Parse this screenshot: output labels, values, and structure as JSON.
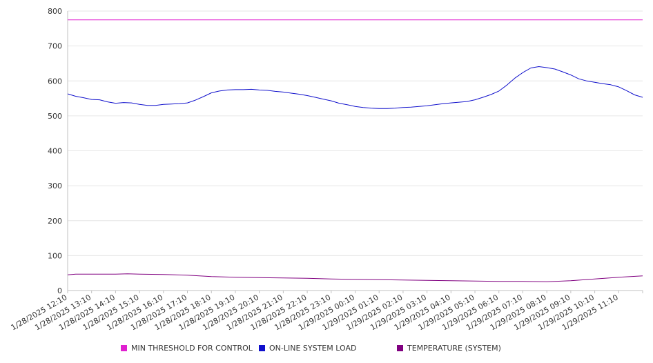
{
  "chart_data": {
    "type": "line",
    "title": "",
    "xlabel": "",
    "ylabel": "",
    "ylim": [
      0,
      800
    ],
    "yticks": [
      0,
      100,
      200,
      300,
      400,
      500,
      600,
      700,
      800
    ],
    "grid": true,
    "legend_position": "bottom",
    "x_tick_labels": [
      "1/28/2025 12:10",
      "1/28/2025 13:10",
      "1/28/2025 14:10",
      "1/28/2025 15:10",
      "1/28/2025 16:10",
      "1/28/2025 17:10",
      "1/28/2025 18:10",
      "1/28/2025 19:10",
      "1/28/2025 20:10",
      "1/28/2025 21:10",
      "1/28/2025 22:10",
      "1/28/2025 23:10",
      "1/29/2025 00:10",
      "1/29/2025 01:10",
      "1/29/2025 02:10",
      "1/29/2025 03:10",
      "1/29/2025 04:10",
      "1/29/2025 05:10",
      "1/29/2025 06:10",
      "1/29/2025 07:10",
      "1/29/2025 08:10",
      "1/29/2025 09:10",
      "1/29/2025 10:10",
      "1/29/2025 11:10"
    ],
    "x_end": "1/29/2025 12:10",
    "series": [
      {
        "name": "MIN THRESHOLD FOR CONTROL",
        "color": "#e020d0",
        "points": [
          [
            "1/28/2025 12:10",
            775
          ],
          [
            "1/29/2025 12:10",
            775
          ]
        ]
      },
      {
        "name": "ON-LINE SYSTEM LOAD",
        "color": "#1010cc",
        "points": [
          [
            "1/28/2025 12:10",
            563
          ],
          [
            "1/28/2025 12:30",
            556
          ],
          [
            "1/28/2025 12:50",
            552
          ],
          [
            "1/28/2025 13:10",
            547
          ],
          [
            "1/28/2025 13:30",
            546
          ],
          [
            "1/28/2025 13:50",
            540
          ],
          [
            "1/28/2025 14:10",
            536
          ],
          [
            "1/28/2025 14:30",
            538
          ],
          [
            "1/28/2025 14:50",
            537
          ],
          [
            "1/28/2025 15:10",
            533
          ],
          [
            "1/28/2025 15:30",
            530
          ],
          [
            "1/28/2025 15:50",
            530
          ],
          [
            "1/28/2025 16:10",
            533
          ],
          [
            "1/28/2025 16:30",
            534
          ],
          [
            "1/28/2025 16:50",
            535
          ],
          [
            "1/28/2025 17:10",
            537
          ],
          [
            "1/28/2025 17:30",
            545
          ],
          [
            "1/28/2025 17:50",
            555
          ],
          [
            "1/28/2025 18:10",
            566
          ],
          [
            "1/28/2025 18:30",
            571
          ],
          [
            "1/28/2025 18:50",
            574
          ],
          [
            "1/28/2025 19:10",
            575
          ],
          [
            "1/28/2025 19:30",
            575
          ],
          [
            "1/28/2025 19:50",
            576
          ],
          [
            "1/28/2025 20:10",
            574
          ],
          [
            "1/28/2025 20:30",
            573
          ],
          [
            "1/28/2025 20:50",
            570
          ],
          [
            "1/28/2025 21:10",
            568
          ],
          [
            "1/28/2025 21:30",
            565
          ],
          [
            "1/28/2025 21:50",
            562
          ],
          [
            "1/28/2025 22:10",
            558
          ],
          [
            "1/28/2025 22:30",
            553
          ],
          [
            "1/28/2025 22:50",
            548
          ],
          [
            "1/28/2025 23:10",
            543
          ],
          [
            "1/28/2025 23:30",
            536
          ],
          [
            "1/28/2025 23:50",
            532
          ],
          [
            "1/29/2025 00:10",
            527
          ],
          [
            "1/29/2025 00:30",
            524
          ],
          [
            "1/29/2025 00:50",
            522
          ],
          [
            "1/29/2025 01:10",
            521
          ],
          [
            "1/29/2025 01:30",
            521
          ],
          [
            "1/29/2025 01:50",
            522
          ],
          [
            "1/29/2025 02:10",
            524
          ],
          [
            "1/29/2025 02:30",
            525
          ],
          [
            "1/29/2025 02:50",
            527
          ],
          [
            "1/29/2025 03:10",
            529
          ],
          [
            "1/29/2025 03:30",
            532
          ],
          [
            "1/29/2025 03:50",
            535
          ],
          [
            "1/29/2025 04:10",
            537
          ],
          [
            "1/29/2025 04:30",
            539
          ],
          [
            "1/29/2025 04:50",
            541
          ],
          [
            "1/29/2025 05:10",
            546
          ],
          [
            "1/29/2025 05:30",
            553
          ],
          [
            "1/29/2025 05:50",
            561
          ],
          [
            "1/29/2025 06:10",
            571
          ],
          [
            "1/29/2025 06:30",
            588
          ],
          [
            "1/29/2025 06:50",
            608
          ],
          [
            "1/29/2025 07:10",
            624
          ],
          [
            "1/29/2025 07:30",
            637
          ],
          [
            "1/29/2025 07:50",
            641
          ],
          [
            "1/29/2025 08:10",
            638
          ],
          [
            "1/29/2025 08:30",
            634
          ],
          [
            "1/29/2025 08:50",
            626
          ],
          [
            "1/29/2025 09:10",
            617
          ],
          [
            "1/29/2025 09:30",
            606
          ],
          [
            "1/29/2025 09:50",
            600
          ],
          [
            "1/29/2025 10:10",
            596
          ],
          [
            "1/29/2025 10:30",
            592
          ],
          [
            "1/29/2025 10:50",
            589
          ],
          [
            "1/29/2025 11:10",
            583
          ],
          [
            "1/29/2025 11:30",
            572
          ],
          [
            "1/29/2025 11:50",
            560
          ],
          [
            "1/29/2025 12:10",
            553
          ]
        ]
      },
      {
        "name": "TEMPERATURE (SYSTEM)",
        "color": "#800080",
        "points": [
          [
            "1/28/2025 12:10",
            45
          ],
          [
            "1/28/2025 12:30",
            47
          ],
          [
            "1/28/2025 13:10",
            47
          ],
          [
            "1/28/2025 14:10",
            47
          ],
          [
            "1/28/2025 14:40",
            48
          ],
          [
            "1/28/2025 15:10",
            47
          ],
          [
            "1/28/2025 16:10",
            46
          ],
          [
            "1/28/2025 17:10",
            44
          ],
          [
            "1/28/2025 18:10",
            40
          ],
          [
            "1/28/2025 19:10",
            38
          ],
          [
            "1/28/2025 20:10",
            37
          ],
          [
            "1/28/2025 21:10",
            36
          ],
          [
            "1/28/2025 22:10",
            35
          ],
          [
            "1/28/2025 23:10",
            33
          ],
          [
            "1/29/2025 00:10",
            32
          ],
          [
            "1/29/2025 01:10",
            31
          ],
          [
            "1/29/2025 02:10",
            30
          ],
          [
            "1/29/2025 03:10",
            29
          ],
          [
            "1/29/2025 04:10",
            28
          ],
          [
            "1/29/2025 05:10",
            27
          ],
          [
            "1/29/2025 06:10",
            26
          ],
          [
            "1/29/2025 07:10",
            26
          ],
          [
            "1/29/2025 08:10",
            25
          ],
          [
            "1/29/2025 09:10",
            28
          ],
          [
            "1/29/2025 10:10",
            33
          ],
          [
            "1/29/2025 11:10",
            38
          ],
          [
            "1/29/2025 12:10",
            42
          ]
        ]
      }
    ]
  }
}
